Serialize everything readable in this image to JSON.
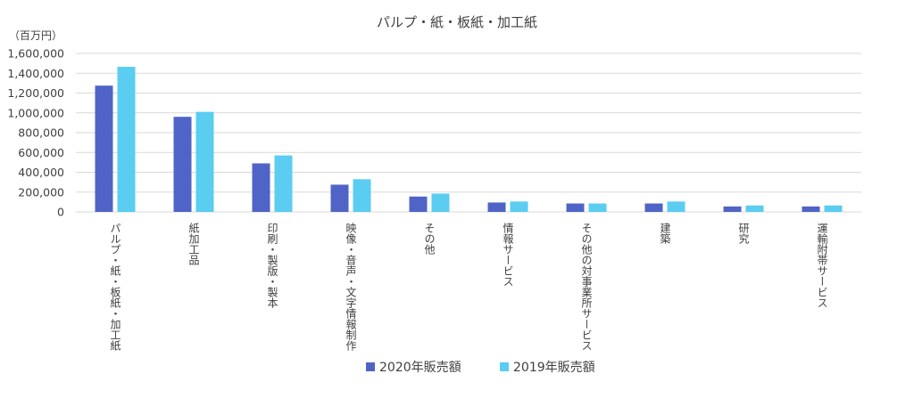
{
  "chart_data": {
    "type": "bar",
    "title": "パルプ・紙・板紙・加工紙",
    "unit_label": "（百万円）",
    "xlabel": "",
    "ylabel": "",
    "ylim": [
      0,
      1600000
    ],
    "y_ticks": [
      "0",
      "200,000",
      "400,000",
      "600,000",
      "800,000",
      "1,000,000",
      "1,200,000",
      "1,400,000",
      "1,600,000"
    ],
    "grid": true,
    "legend_position": "bottom",
    "categories": [
      "パルプ・紙・板紙・加工紙",
      "紙加工品",
      "印刷・製版・製本",
      "映像・音声・文字情報制作",
      "その他",
      "情報サービス",
      "その他の対事業所サービス",
      "建築",
      "研究",
      "運輸附帯サービス"
    ],
    "series": [
      {
        "name": "2020年販売額",
        "color": "#4f64c6",
        "values": [
          1275000,
          960000,
          490000,
          275000,
          155000,
          95000,
          85000,
          85000,
          55000,
          55000
        ]
      },
      {
        "name": "2019年販売額",
        "color": "#5bcdf1",
        "values": [
          1465000,
          1010000,
          570000,
          330000,
          185000,
          105000,
          85000,
          105000,
          65000,
          65000
        ]
      }
    ]
  }
}
